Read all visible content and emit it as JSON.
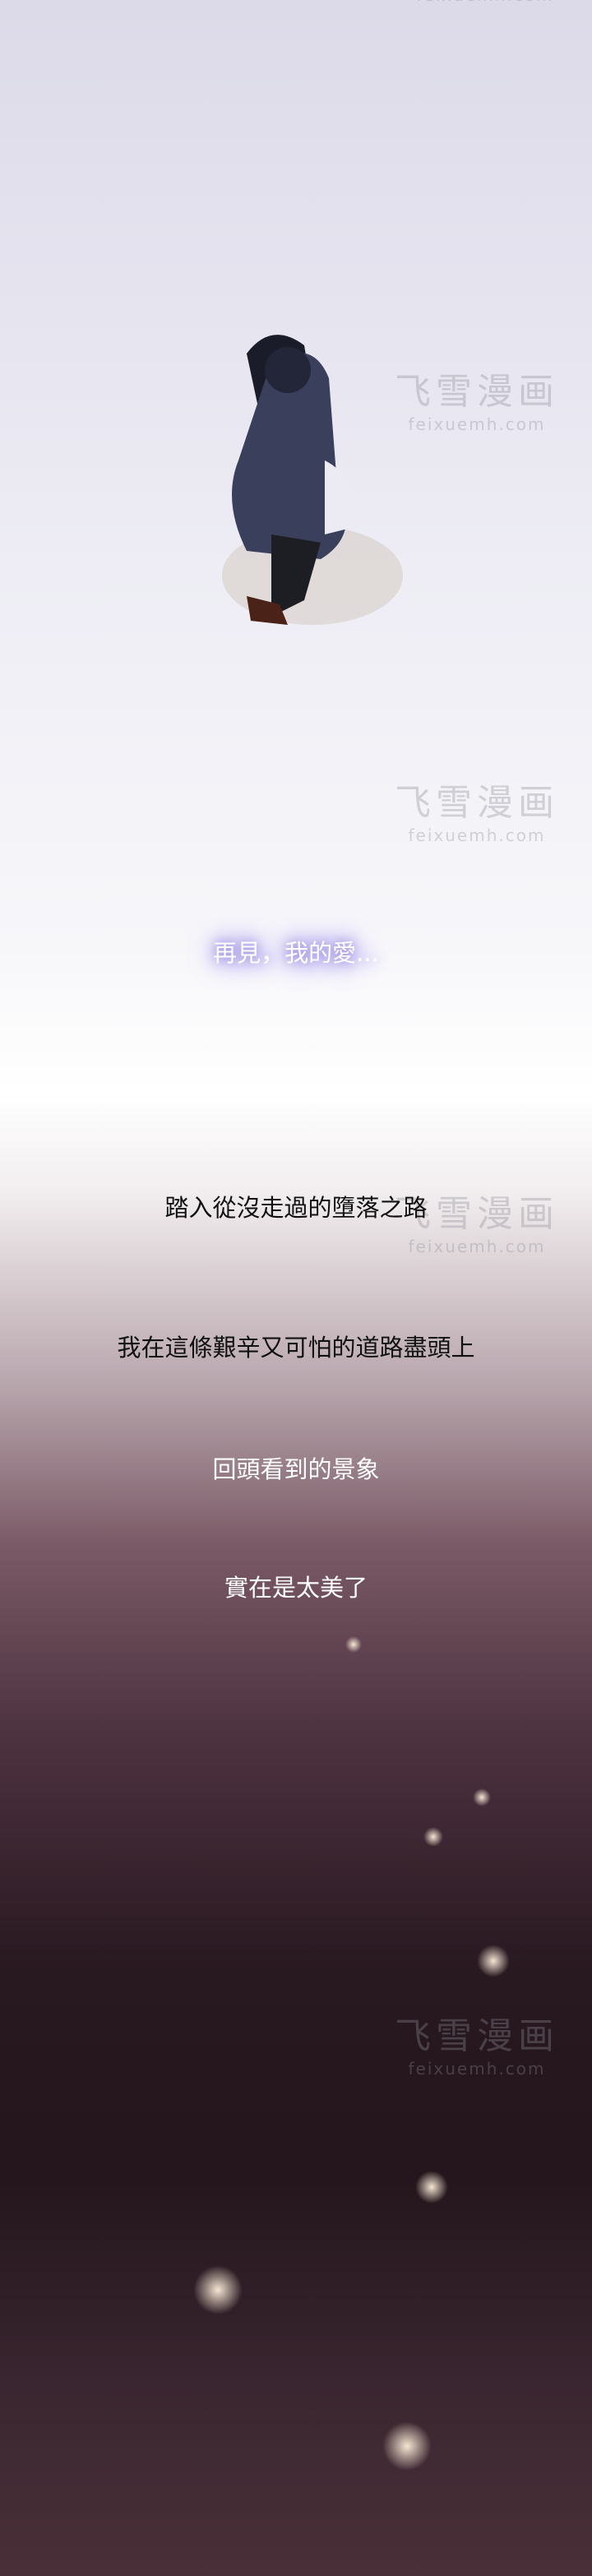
{
  "captions": [
    "再見，我的愛...",
    "踏入從沒走過的墮落之路",
    "我在這條艱辛又可怕的道路盡頭上",
    "回頭看到的景象",
    "實在是太美了"
  ],
  "watermark": {
    "name": "飞雪漫画",
    "url": "feixuemh.com"
  }
}
